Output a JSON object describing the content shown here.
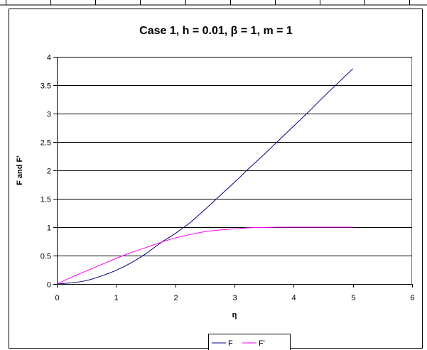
{
  "chart_data": {
    "type": "line",
    "title": "Case 1,  h = 0.01, β = 1, m = 1",
    "xlabel": "η",
    "ylabel": "F and F'",
    "xlim": [
      0,
      6
    ],
    "ylim": [
      0,
      4
    ],
    "xticks": [
      "0",
      "1",
      "2",
      "3",
      "4",
      "5",
      "6"
    ],
    "yticks": [
      "0",
      "0.5",
      "1",
      "1.5",
      "2",
      "2.5",
      "3",
      "3.5",
      "4"
    ],
    "grid": "horizontal",
    "legend": "bottom",
    "series": [
      {
        "name": "F",
        "color": "#000080",
        "x": [
          0,
          0.25,
          0.5,
          0.75,
          1.0,
          1.25,
          1.5,
          1.75,
          2.0,
          2.25,
          2.5,
          2.75,
          3.0,
          3.25,
          3.5,
          3.75,
          4.0,
          4.25,
          4.5,
          4.75,
          5.0
        ],
        "y": [
          0,
          0.02,
          0.06,
          0.14,
          0.24,
          0.37,
          0.53,
          0.72,
          0.89,
          1.08,
          1.31,
          1.55,
          1.79,
          2.04,
          2.28,
          2.53,
          2.78,
          3.03,
          3.29,
          3.54,
          3.79
        ]
      },
      {
        "name": "F'",
        "color": "#ff00ff",
        "x": [
          0,
          0.25,
          0.5,
          0.75,
          1.0,
          1.25,
          1.5,
          1.75,
          2.0,
          2.25,
          2.5,
          2.75,
          3.0,
          3.25,
          3.5,
          3.75,
          4.0,
          4.5,
          5.0
        ],
        "y": [
          0,
          0.12,
          0.23,
          0.34,
          0.45,
          0.55,
          0.64,
          0.73,
          0.81,
          0.87,
          0.92,
          0.95,
          0.97,
          0.99,
          0.995,
          1.0,
          1.0,
          1.0,
          1.0
        ]
      }
    ]
  }
}
